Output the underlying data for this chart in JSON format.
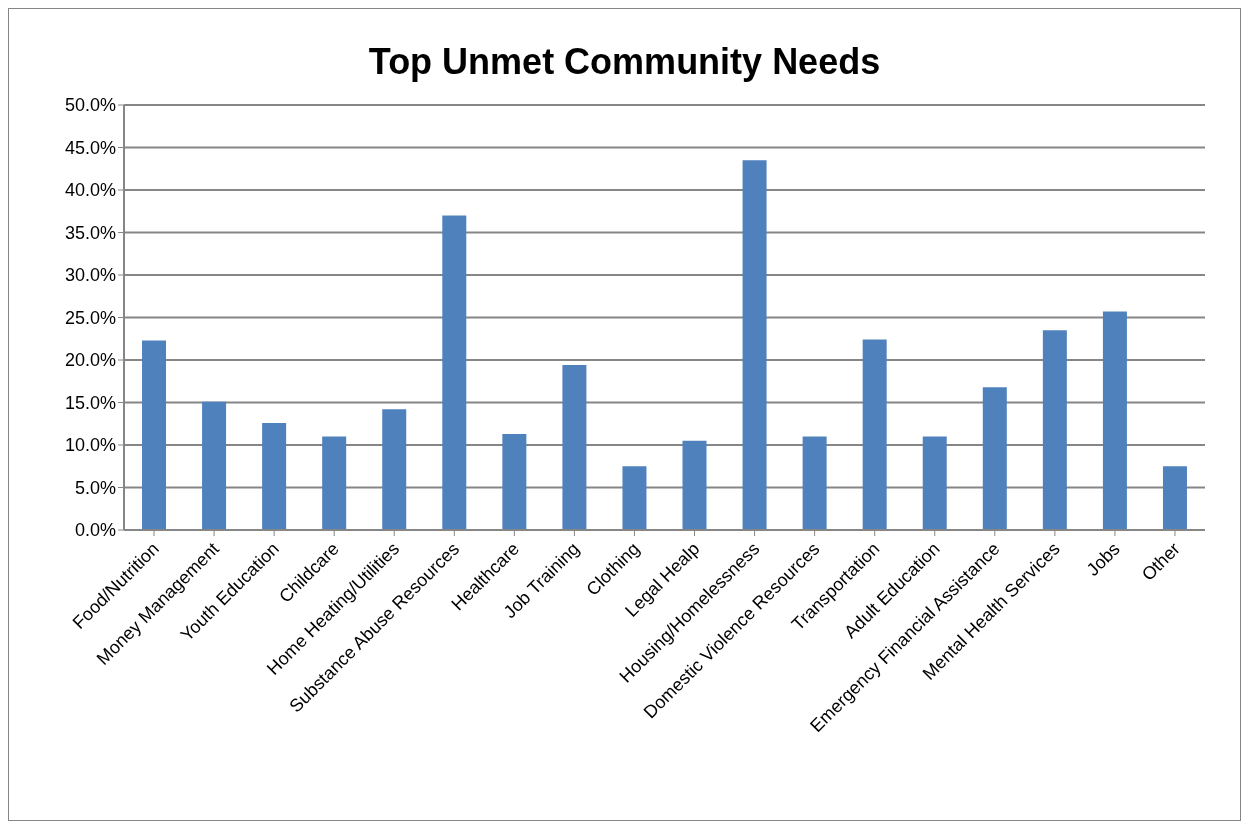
{
  "chart_data": {
    "type": "bar",
    "title": "Top Unmet Community Needs",
    "categories": [
      "Food/Nutrition",
      "Money Management",
      "Youth Education",
      "Childcare",
      "Home Heating/Utilities",
      "Substance Abuse Resources",
      "Healthcare",
      "Job Training",
      "Clothing",
      "Legal Healp",
      "Housing/Homelessness",
      "Domestic Violence Resources",
      "Transportation",
      "Adult Education",
      "Emergency Financial Assistance",
      "Mental Health Services",
      "Jobs",
      "Other"
    ],
    "values": [
      22.3,
      15.1,
      12.6,
      11.0,
      14.2,
      37.0,
      11.3,
      19.4,
      7.5,
      10.5,
      43.5,
      11.0,
      22.4,
      11.0,
      16.8,
      23.5,
      25.7,
      7.5
    ],
    "color": "#4f81bd",
    "ylim": [
      0,
      50
    ],
    "yticks": [
      {
        "value": 0,
        "label": "0.0%"
      },
      {
        "value": 5,
        "label": "5.0%"
      },
      {
        "value": 10,
        "label": "10.0%"
      },
      {
        "value": 15,
        "label": "15.0%"
      },
      {
        "value": 20,
        "label": "20.0%"
      },
      {
        "value": 25,
        "label": "25.0%"
      },
      {
        "value": 30,
        "label": "30.0%"
      },
      {
        "value": 35,
        "label": "35.0%"
      },
      {
        "value": 40,
        "label": "40.0%"
      },
      {
        "value": 45,
        "label": "45.0%"
      },
      {
        "value": 50,
        "label": "50.0%"
      }
    ],
    "grid": "y"
  }
}
